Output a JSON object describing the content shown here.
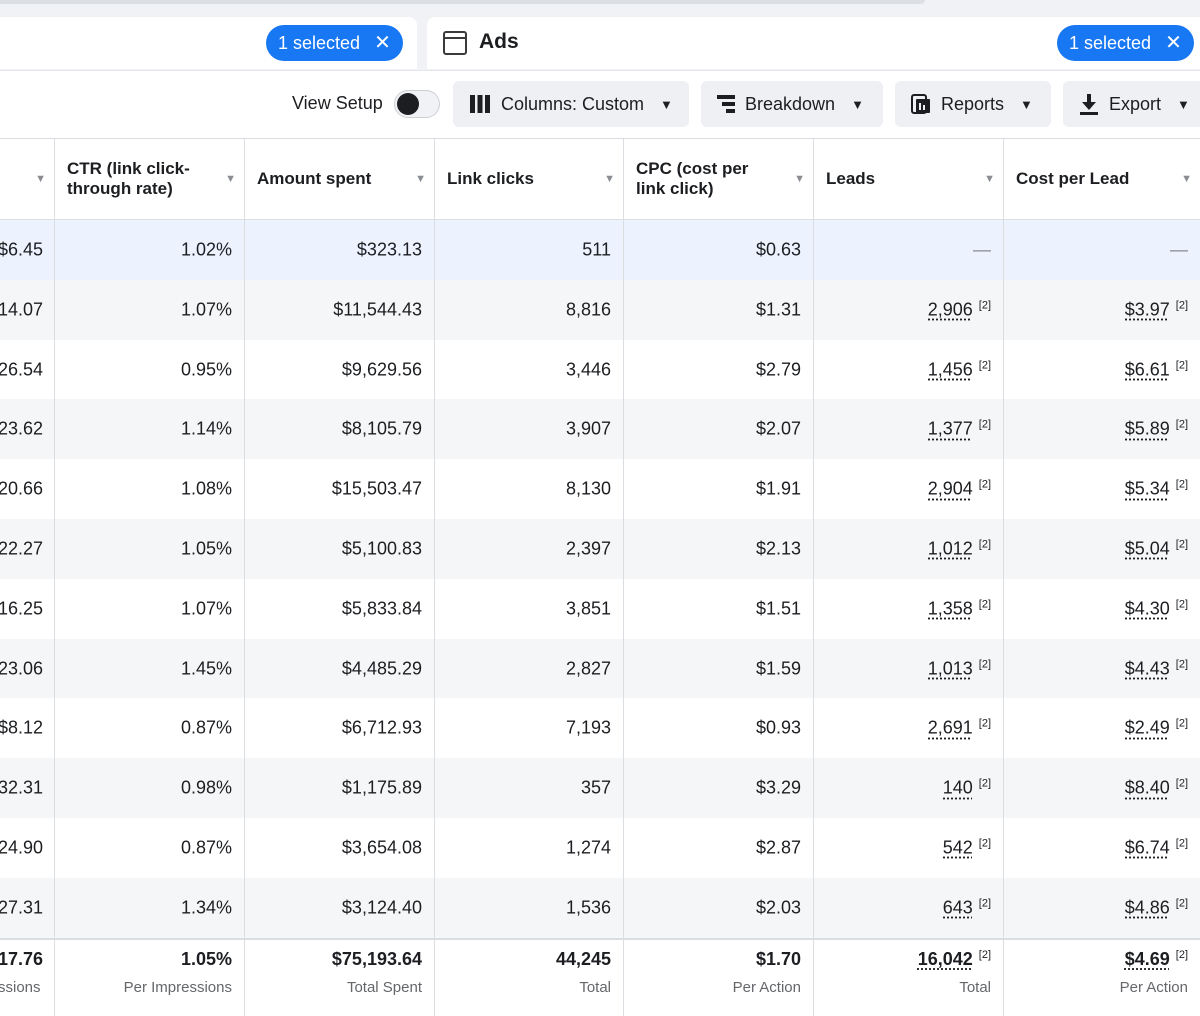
{
  "tabs": {
    "left_selected": "1 selected",
    "ads_label": "Ads",
    "ads_selected": "1 selected",
    "clear_symbol": "✕"
  },
  "toolbar": {
    "view_setup": "View Setup",
    "columns": "Columns: Custom",
    "breakdown": "Breakdown",
    "reports": "Reports",
    "export": "Export"
  },
  "columns": [
    "",
    "CTR (link click-through rate)",
    "Amount spent",
    "Link clicks",
    "CPC (cost per link click)",
    "Leads",
    "Cost per Lead"
  ],
  "rows": [
    [
      "$6.45",
      "1.02%",
      "$323.13",
      "511",
      "$0.63",
      "—",
      "—"
    ],
    [
      "14.07",
      "1.07%",
      "$11,544.43",
      "8,816",
      "$1.31",
      "2,906",
      "$3.97"
    ],
    [
      "26.54",
      "0.95%",
      "$9,629.56",
      "3,446",
      "$2.79",
      "1,456",
      "$6.61"
    ],
    [
      "23.62",
      "1.14%",
      "$8,105.79",
      "3,907",
      "$2.07",
      "1,377",
      "$5.89"
    ],
    [
      "20.66",
      "1.08%",
      "$15,503.47",
      "8,130",
      "$1.91",
      "2,904",
      "$5.34"
    ],
    [
      "22.27",
      "1.05%",
      "$5,100.83",
      "2,397",
      "$2.13",
      "1,012",
      "$5.04"
    ],
    [
      "16.25",
      "1.07%",
      "$5,833.84",
      "3,851",
      "$1.51",
      "1,358",
      "$4.30"
    ],
    [
      "23.06",
      "1.45%",
      "$4,485.29",
      "2,827",
      "$1.59",
      "1,013",
      "$4.43"
    ],
    [
      "$8.12",
      "0.87%",
      "$6,712.93",
      "7,193",
      "$0.93",
      "2,691",
      "$2.49"
    ],
    [
      "32.31",
      "0.98%",
      "$1,175.89",
      "357",
      "$3.29",
      "140",
      "$8.40"
    ],
    [
      "24.90",
      "0.87%",
      "$3,654.08",
      "1,274",
      "$2.87",
      "542",
      "$6.74"
    ],
    [
      "27.31",
      "1.34%",
      "$3,124.40",
      "1,536",
      "$2.03",
      "643",
      "$4.86"
    ]
  ],
  "footnote_mark": "[2]",
  "totals": {
    "values": [
      "17.76",
      "1.05%",
      "$75,193.64",
      "44,245",
      "$1.70",
      "16,042",
      "$4.69"
    ],
    "labels": [
      "ssions",
      "Per Impressions",
      "Total Spent",
      "Total",
      "Per Action",
      "Total",
      "Per Action"
    ]
  },
  "colors": {
    "accent": "#1877f2",
    "selected_row": "#ecf3ff",
    "zebra": "#f5f6f7"
  }
}
